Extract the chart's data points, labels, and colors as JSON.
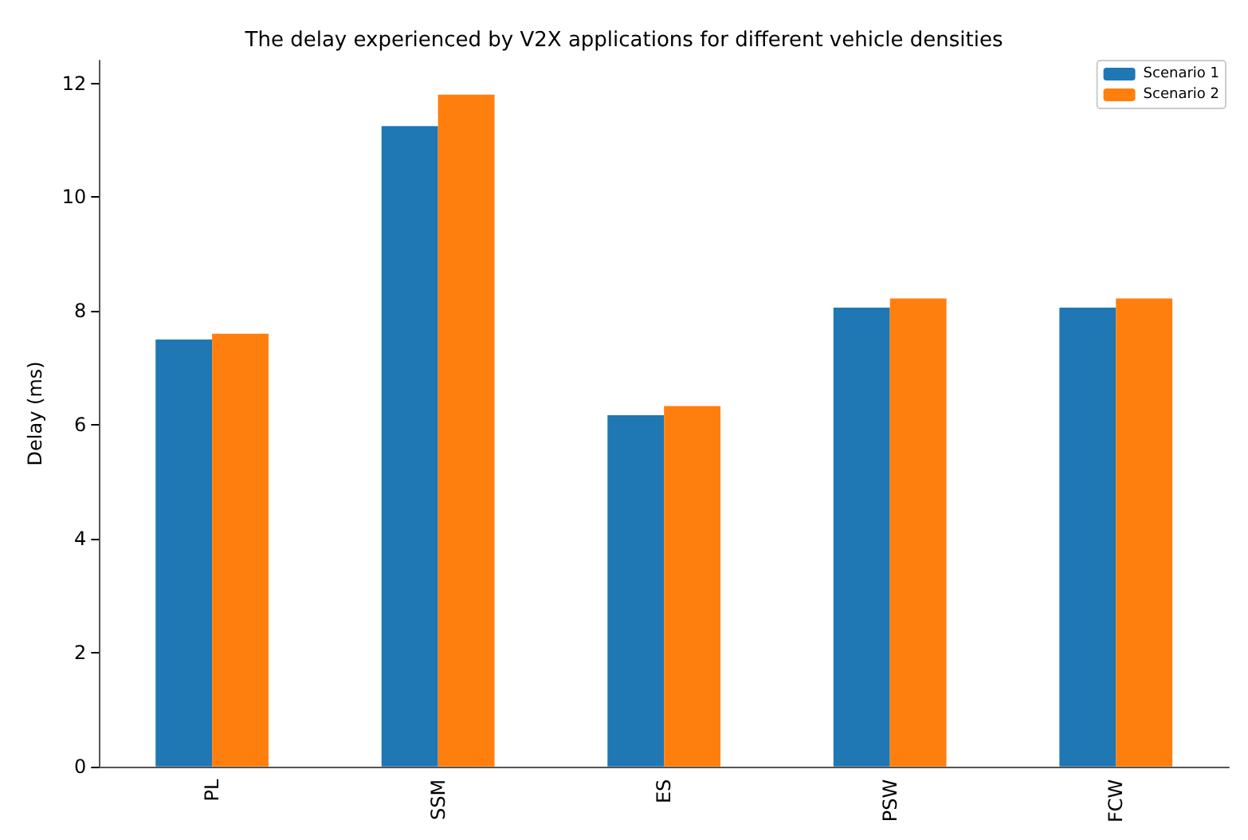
{
  "chart_data": {
    "type": "bar",
    "title": "The delay experienced by V2X applications for different vehicle densities",
    "ylabel": "Delay (ms)",
    "categories": [
      "PL",
      "SSM",
      "ES",
      "PSW",
      "FCW"
    ],
    "series": [
      {
        "name": "Scenario 1",
        "color": "#1f77b4",
        "values": [
          7.5,
          11.25,
          6.17,
          8.06,
          8.06
        ]
      },
      {
        "name": "Scenario 2",
        "color": "#ff7f0e",
        "values": [
          7.6,
          11.8,
          6.33,
          8.22,
          8.22
        ]
      }
    ],
    "ylim": [
      0,
      12.4
    ],
    "yticks": [
      0,
      2,
      4,
      6,
      8,
      10,
      12
    ],
    "grid": false,
    "legend": "top right"
  }
}
